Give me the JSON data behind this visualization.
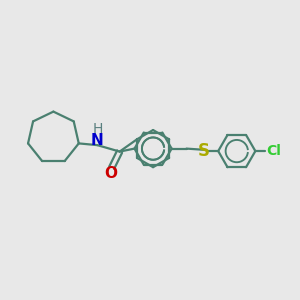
{
  "bg_color": "#e8e8e8",
  "bond_color": "#4a8070",
  "N_color": "#0000cc",
  "O_color": "#cc0000",
  "S_color": "#aaaa00",
  "Cl_color": "#33cc33",
  "H_color": "#5a8080",
  "line_width": 1.6,
  "font_size": 10,
  "fig_bg": "#e8e8e8",
  "xlim": [
    0,
    12
  ],
  "ylim": [
    0,
    10
  ]
}
